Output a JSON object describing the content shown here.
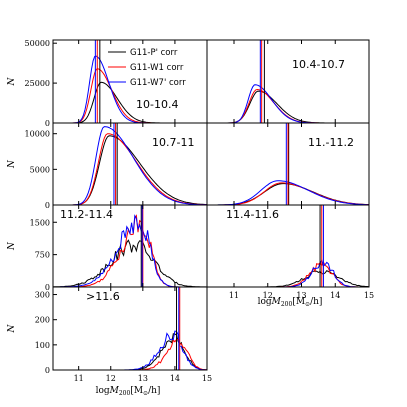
{
  "chart_data": {
    "type": "line",
    "xlabel": "log M_200[M_⊙/h]",
    "ylabel": "N",
    "xlim": [
      10.2,
      15
    ],
    "xticks": [
      11,
      12,
      13,
      14,
      15
    ],
    "xtick_labels": [
      "11",
      "12",
      "13",
      "14",
      "15"
    ],
    "legend": {
      "placement": "top-right of first panel",
      "entries": [
        {
          "label": "G11-P' corr",
          "color": "#000000"
        },
        {
          "label": "G11-W1 corr",
          "color": "#ff0000"
        },
        {
          "label": "G11-W7' corr",
          "color": "#0000ff"
        }
      ]
    },
    "series_colors": {
      "p": "#000000",
      "w1": "#ff0000",
      "w7": "#0000ff"
    },
    "panels": [
      {
        "label": "10-10.4",
        "ylim": [
          0,
          52000
        ],
        "yticks": [
          0,
          25000,
          50000
        ],
        "ytick_labels": [
          "0",
          "25000",
          "50000"
        ],
        "medians": {
          "p": 11.66,
          "w1": 11.58,
          "w7": 11.52
        },
        "series": {
          "p": {
            "peak": 11.7,
            "height": 25500,
            "left": 0.22,
            "right": 0.5
          },
          "w1": {
            "peak": 11.58,
            "height": 34000,
            "left": 0.2,
            "right": 0.45
          },
          "w7": {
            "peak": 11.52,
            "height": 42000,
            "left": 0.18,
            "right": 0.42
          }
        }
      },
      {
        "label": "10.4-10.7",
        "ylim": [
          0,
          52000
        ],
        "yticks": [],
        "ytick_labels": [],
        "medians": {
          "p": 11.9,
          "w1": 11.82,
          "w7": 11.78
        },
        "series": {
          "p": {
            "peak": 11.72,
            "height": 20000,
            "left": 0.25,
            "right": 0.55
          },
          "w1": {
            "peak": 11.68,
            "height": 21000,
            "left": 0.23,
            "right": 0.5
          },
          "w7": {
            "peak": 11.62,
            "height": 24000,
            "left": 0.2,
            "right": 0.5
          }
        }
      },
      {
        "label": "10.7-11",
        "ylim": [
          0,
          11500
        ],
        "yticks": [
          0,
          5000,
          10000
        ],
        "ytick_labels": [
          "0",
          "5000",
          "10000"
        ],
        "medians": {
          "p": 12.2,
          "w1": 12.15,
          "w7": 12.1
        },
        "series": {
          "p": {
            "peak": 11.95,
            "height": 9700,
            "left": 0.3,
            "right": 0.95
          },
          "w1": {
            "peak": 11.9,
            "height": 10000,
            "left": 0.28,
            "right": 0.9
          },
          "w7": {
            "peak": 11.8,
            "height": 11000,
            "left": 0.26,
            "right": 0.9
          }
        }
      },
      {
        "label": "11.-11.2",
        "ylim": [
          0,
          11500
        ],
        "yticks": [],
        "ytick_labels": [],
        "medians": {
          "p": 12.62,
          "w1": 12.6,
          "w7": 12.55
        },
        "series": {
          "p": {
            "peak": 12.45,
            "height": 3000,
            "left": 0.55,
            "right": 0.9
          },
          "w1": {
            "peak": 12.4,
            "height": 3100,
            "left": 0.5,
            "right": 0.9
          },
          "w7": {
            "peak": 12.3,
            "height": 3400,
            "left": 0.5,
            "right": 0.9
          }
        }
      },
      {
        "label": "11.2-11.4",
        "ylim": [
          0,
          1900
        ],
        "yticks": [
          0,
          750,
          1500
        ],
        "ytick_labels": [
          "0",
          "750",
          "1500"
        ],
        "medians": {
          "p": 12.95,
          "w1": 13.0,
          "w7": 12.98
        },
        "series": {
          "p": {
            "peak": 12.75,
            "height": 980,
            "left": 0.75,
            "right": 0.6
          },
          "w1": {
            "peak": 12.95,
            "height": 1500,
            "left": 0.6,
            "right": 0.3
          },
          "w7": {
            "peak": 12.9,
            "height": 1550,
            "left": 0.65,
            "right": 0.32
          }
        }
      },
      {
        "label": "11.4-11.6",
        "ylim": [
          0,
          1900
        ],
        "yticks": [],
        "ytick_labels": [],
        "medians": {
          "p": 13.55,
          "w1": 13.6,
          "w7": 13.65
        },
        "series": {
          "p": {
            "peak": 13.6,
            "height": 360,
            "left": 0.5,
            "right": 0.5
          },
          "w1": {
            "peak": 13.6,
            "height": 520,
            "left": 0.35,
            "right": 0.3
          },
          "w7": {
            "peak": 13.65,
            "height": 580,
            "left": 0.33,
            "right": 0.28
          }
        }
      },
      {
        "label": ">11.6",
        "ylim": [
          0,
          330
        ],
        "yticks": [
          0,
          100,
          200,
          300
        ],
        "ytick_labels": [
          "0",
          "100",
          "200",
          "300"
        ],
        "medians": {
          "p": 14.05,
          "w1": 14.15,
          "w7": 14.12
        },
        "series": {
          "p": {
            "peak": 14.0,
            "height": 130,
            "left": 0.4,
            "right": 0.3
          },
          "w1": {
            "peak": 14.15,
            "height": 120,
            "left": 0.38,
            "right": 0.25
          },
          "w7": {
            "peak": 13.95,
            "height": 140,
            "left": 0.42,
            "right": 0.3
          }
        }
      }
    ]
  }
}
